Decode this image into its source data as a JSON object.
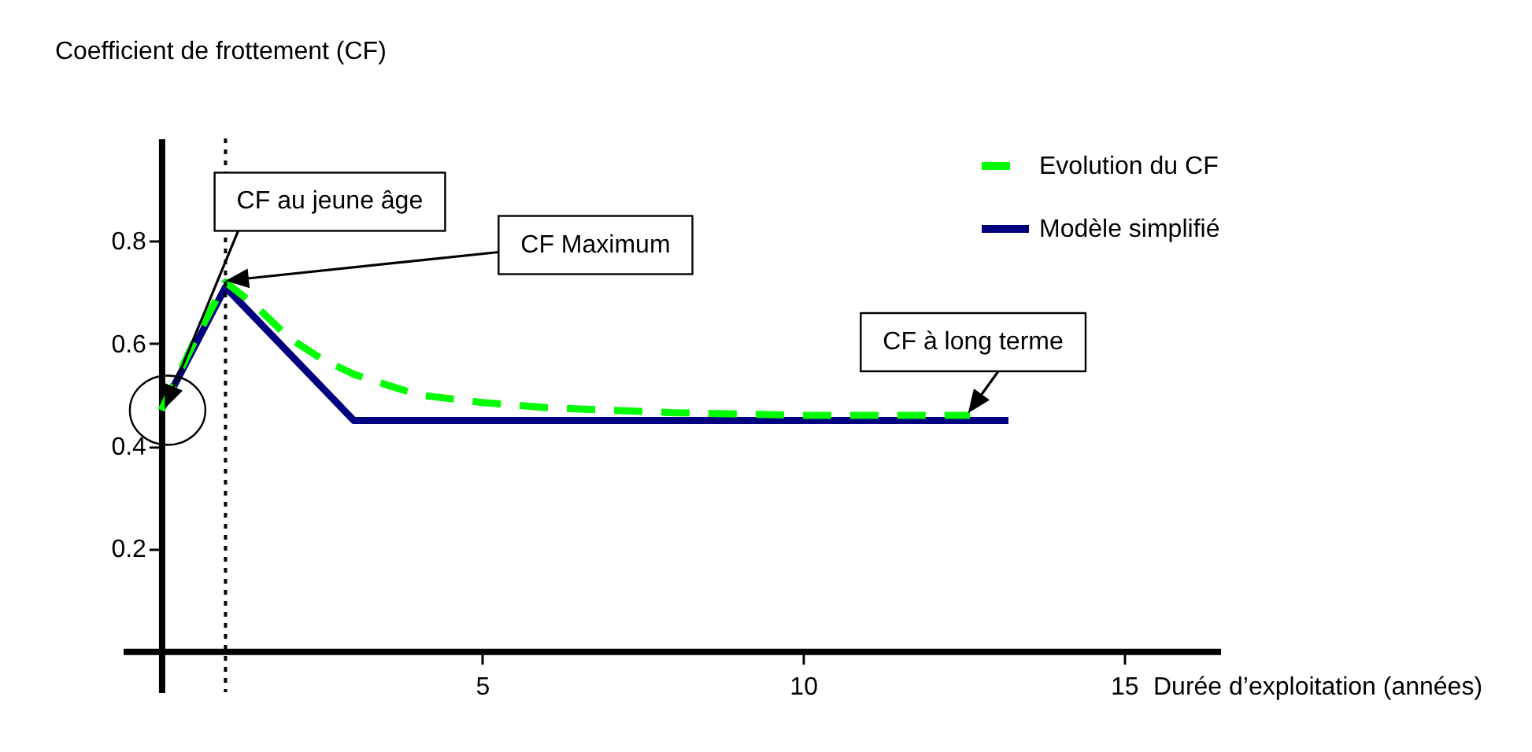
{
  "chart_data": {
    "type": "line",
    "xlabel": "Durée d’exploitation (années)",
    "ylabel": "Coefficient de frottement (CF)",
    "xlim": [
      -0.6,
      16.5
    ],
    "ylim": [
      -0.08,
      1.0
    ],
    "xticks": [
      5,
      10,
      15
    ],
    "yticks": [
      0.2,
      0.4,
      0.6,
      0.8
    ],
    "grid": false,
    "legend": "top right",
    "series": [
      {
        "name": "Evolution du CF",
        "color": "#00ff00",
        "line_style": "dashed",
        "x": [
          0,
          0.5,
          1,
          1.5,
          2,
          2.5,
          3,
          4,
          5,
          6,
          8,
          10,
          12.6
        ],
        "values": [
          0.47,
          0.6,
          0.72,
          0.67,
          0.61,
          0.57,
          0.54,
          0.5,
          0.485,
          0.475,
          0.465,
          0.46,
          0.46
        ]
      },
      {
        "name": "Modèle simplifié",
        "color": "#000080",
        "line_style": "solid",
        "x": [
          0,
          1,
          3,
          13.2
        ],
        "values": [
          0.47,
          0.71,
          0.45,
          0.45
        ]
      }
    ],
    "ref_lines": [
      {
        "axis": "x",
        "value": 1,
        "line_style": "dotted",
        "color": "#000000"
      }
    ],
    "annotations": [
      "CF au jeune âge",
      "CF Maximum",
      {
        "text": "CF à long terme",
        "x": 12.6,
        "y": 0.46
      }
    ]
  }
}
